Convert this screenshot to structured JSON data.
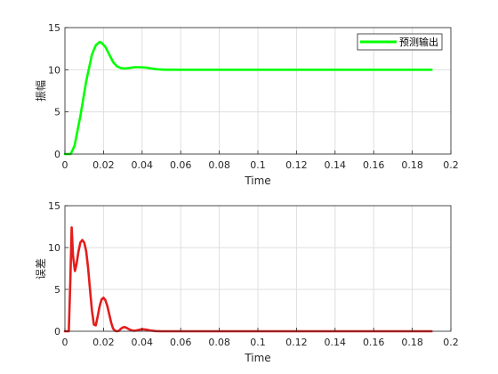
{
  "chart_data": [
    {
      "type": "line",
      "xlabel": "Time",
      "ylabel": "振幅",
      "xlim": [
        0,
        0.2
      ],
      "ylim": [
        0,
        15
      ],
      "xticks": [
        "0",
        "0.02",
        "0.04",
        "0.06",
        "0.08",
        "0.1",
        "0.12",
        "0.14",
        "0.16",
        "0.18",
        "0.2"
      ],
      "yticks": [
        "0",
        "5",
        "10",
        "15"
      ],
      "grid": true,
      "legend": "top-right",
      "series": [
        {
          "name": "预测输出",
          "color": "#00ff00",
          "x": [
            0,
            0.003,
            0.005,
            0.008,
            0.011,
            0.014,
            0.016,
            0.018,
            0.019,
            0.021,
            0.023,
            0.025,
            0.027,
            0.029,
            0.031,
            0.033,
            0.036,
            0.039,
            0.042,
            0.045,
            0.048,
            0.052,
            0.06,
            0.08,
            0.1,
            0.12,
            0.14,
            0.16,
            0.18,
            0.19
          ],
          "y": [
            0,
            0,
            1.0,
            4.5,
            8.6,
            11.8,
            12.9,
            13.3,
            13.2,
            12.7,
            11.8,
            10.9,
            10.4,
            10.2,
            10.15,
            10.2,
            10.3,
            10.3,
            10.25,
            10.15,
            10.05,
            10.0,
            10.0,
            10.0,
            10.0,
            10.0,
            10.0,
            10.0,
            10.0,
            10.0
          ]
        }
      ]
    },
    {
      "type": "line",
      "xlabel": "Time",
      "ylabel": "误差",
      "xlim": [
        0,
        0.2
      ],
      "ylim": [
        0,
        15
      ],
      "xticks": [
        "0",
        "0.02",
        "0.04",
        "0.06",
        "0.08",
        "0.1",
        "0.12",
        "0.14",
        "0.16",
        "0.18",
        "0.2"
      ],
      "yticks": [
        "0",
        "5",
        "10",
        "15"
      ],
      "grid": true,
      "series": [
        {
          "color": "#e51c1c",
          "x": [
            0,
            0.002,
            0.0028,
            0.0035,
            0.0042,
            0.0052,
            0.006,
            0.007,
            0.008,
            0.009,
            0.01,
            0.011,
            0.012,
            0.013,
            0.014,
            0.015,
            0.016,
            0.017,
            0.018,
            0.019,
            0.02,
            0.021,
            0.022,
            0.023,
            0.024,
            0.025,
            0.026,
            0.027,
            0.028,
            0.029,
            0.03,
            0.031,
            0.032,
            0.034,
            0.036,
            0.038,
            0.04,
            0.042,
            0.044,
            0.047,
            0.05,
            0.055,
            0.06,
            0.08,
            0.1,
            0.12,
            0.14,
            0.16,
            0.18,
            0.19
          ],
          "y": [
            0,
            0,
            6.0,
            12.4,
            9.0,
            7.2,
            8.0,
            9.5,
            10.6,
            10.9,
            10.6,
            9.6,
            7.6,
            5.0,
            2.5,
            0.8,
            0.7,
            1.8,
            3.0,
            3.8,
            4.0,
            3.7,
            3.0,
            2.0,
            1.0,
            0.3,
            0.05,
            0.0,
            0.05,
            0.3,
            0.45,
            0.5,
            0.4,
            0.15,
            0.05,
            0.15,
            0.25,
            0.2,
            0.1,
            0.02,
            0.0,
            0.0,
            0.0,
            0.0,
            0.0,
            0.0,
            0.0,
            0.0,
            0.0,
            0.0
          ]
        }
      ]
    }
  ]
}
